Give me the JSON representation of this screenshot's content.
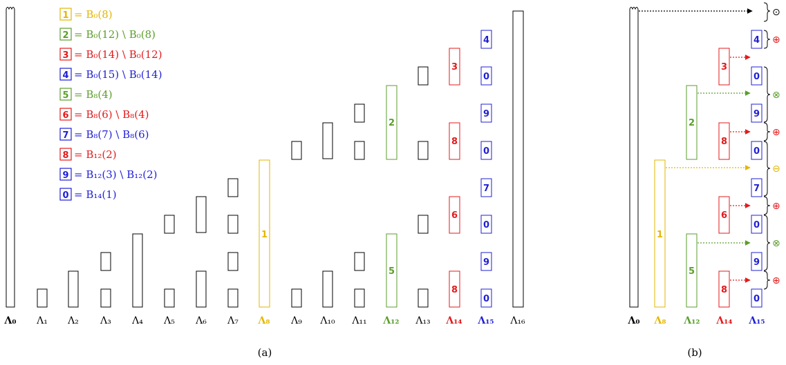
{
  "colors": {
    "black": "#000000",
    "yellow": "#e3b600",
    "green": "#5b9e2c",
    "red": "#e31a1c",
    "blue": "#1f1fd6",
    "arrow_black": "#000000"
  },
  "subfigures": {
    "a_label": "(a)",
    "b_label": "(b)"
  },
  "legend": [
    {
      "num": "1",
      "text": "= B₀(8)",
      "color": "yellow"
    },
    {
      "num": "2",
      "text": "= B₀(12) \\ B₀(8)",
      "color": "green"
    },
    {
      "num": "3",
      "text": "= B₀(14) \\ B₀(12)",
      "color": "red"
    },
    {
      "num": "4",
      "text": "= B₀(15) \\ B₀(14)",
      "color": "blue"
    },
    {
      "num": "5",
      "text": "= B₈(4)",
      "color": "green"
    },
    {
      "num": "6",
      "text": "= B₈(6) \\ B₈(4)",
      "color": "red"
    },
    {
      "num": "7",
      "text": "= B₈(7) \\ B₈(6)",
      "color": "blue"
    },
    {
      "num": "8",
      "text": "= B₁₂(2)",
      "color": "red"
    },
    {
      "num": "9",
      "text": "= B₁₂(3) \\ B₁₂(2)",
      "color": "blue"
    },
    {
      "num": "0",
      "text": "= B₁₄(1)",
      "color": "blue"
    }
  ],
  "lambda_labels_a": [
    {
      "text": "Λ₀",
      "color": "black",
      "bold": true
    },
    {
      "text": "Λ₁",
      "color": "black",
      "bold": false
    },
    {
      "text": "Λ₂",
      "color": "black",
      "bold": false
    },
    {
      "text": "Λ₃",
      "color": "black",
      "bold": false
    },
    {
      "text": "Λ₄",
      "color": "black",
      "bold": false
    },
    {
      "text": "Λ₅",
      "color": "black",
      "bold": false
    },
    {
      "text": "Λ₆",
      "color": "black",
      "bold": false
    },
    {
      "text": "Λ₇",
      "color": "black",
      "bold": false
    },
    {
      "text": "Λ₈",
      "color": "yellow",
      "bold": true
    },
    {
      "text": "Λ₉",
      "color": "black",
      "bold": false
    },
    {
      "text": "Λ₁₀",
      "color": "black",
      "bold": false
    },
    {
      "text": "Λ₁₁",
      "color": "black",
      "bold": false
    },
    {
      "text": "Λ₁₂",
      "color": "green",
      "bold": true
    },
    {
      "text": "Λ₁₃",
      "color": "black",
      "bold": false
    },
    {
      "text": "Λ₁₄",
      "color": "red",
      "bold": true
    },
    {
      "text": "Λ₁₅",
      "color": "blue",
      "bold": true
    },
    {
      "text": "Λ₁₆",
      "color": "black",
      "bold": false
    }
  ],
  "lambda_labels_b": [
    {
      "text": "Λ₀",
      "color": "black"
    },
    {
      "text": "Λ₈",
      "color": "yellow"
    },
    {
      "text": "Λ₁₂",
      "color": "green"
    },
    {
      "text": "Λ₁₄",
      "color": "red"
    },
    {
      "text": "Λ₁₅",
      "color": "blue"
    }
  ],
  "panel_a": {
    "yellow_box": "1",
    "green_boxes": [
      "2",
      "5"
    ],
    "red_boxes": [
      "3",
      "8",
      "6",
      "8"
    ],
    "blue_boxes": [
      "4",
      "0",
      "9",
      "0",
      "7",
      "0",
      "9",
      "0"
    ]
  },
  "panel_b": {
    "yellow_box": "1",
    "green_boxes": [
      "2",
      "5"
    ],
    "red_boxes": [
      "3",
      "8",
      "6",
      "8"
    ],
    "blue_boxes": [
      "4",
      "0",
      "9",
      "0",
      "7",
      "0",
      "9",
      "0"
    ],
    "operators": [
      {
        "symbol": "⊙",
        "color": "black"
      },
      {
        "symbol": "⊕",
        "color": "red"
      },
      {
        "symbol": "⊗",
        "color": "green"
      },
      {
        "symbol": "⊕",
        "color": "red"
      },
      {
        "symbol": "⊖",
        "color": "yellow"
      },
      {
        "symbol": "⊕",
        "color": "red"
      },
      {
        "symbol": "⊗",
        "color": "green"
      },
      {
        "symbol": "⊕",
        "color": "red"
      }
    ]
  }
}
